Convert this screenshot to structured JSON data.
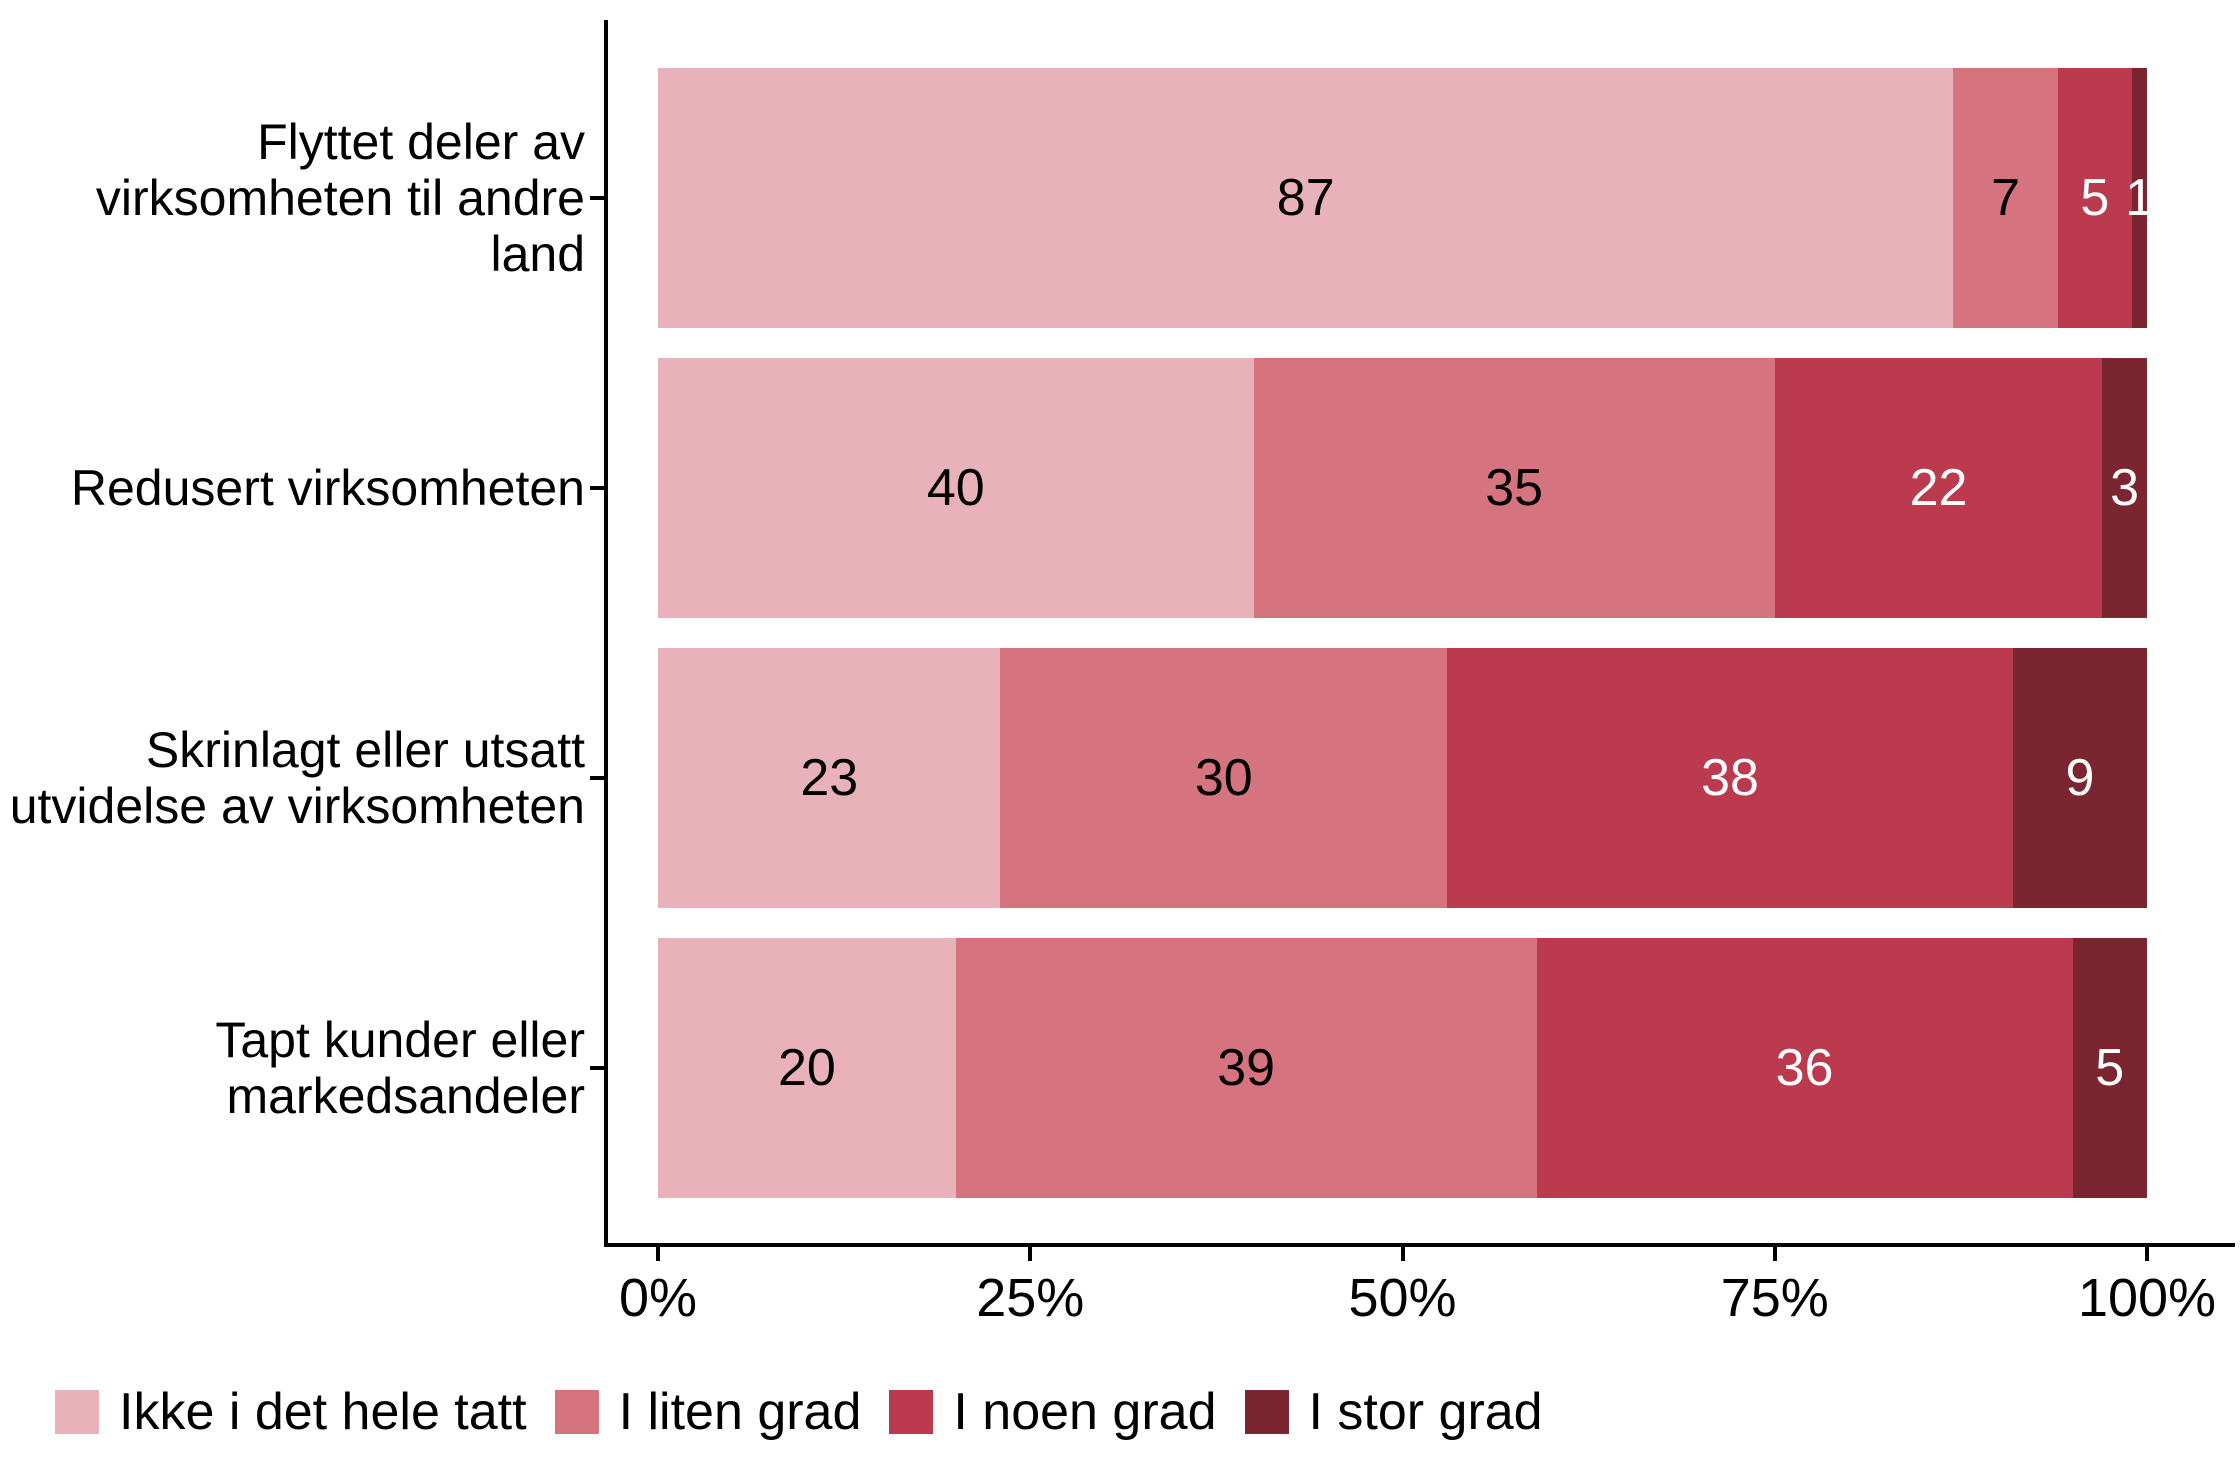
{
  "chart_data": {
    "type": "bar",
    "orientation": "horizontal",
    "stacked": true,
    "unit": "percent",
    "title": "",
    "categories": [
      {
        "label": "Flyttet deler av virksomheten til andre land",
        "lines": [
          "Flyttet deler av",
          "virksomheten til andre",
          "land"
        ]
      },
      {
        "label": "Redusert virksomheten",
        "lines": [
          "Redusert virksomheten"
        ]
      },
      {
        "label": "Skrinlagt eller utsatt utvidelse av virksomheten",
        "lines": [
          "Skrinlagt eller utsatt",
          "utvidelse av virksomheten"
        ]
      },
      {
        "label": "Tapt kunder eller markedsandeler",
        "lines": [
          "Tapt kunder eller",
          "markedsandeler"
        ]
      }
    ],
    "series": [
      {
        "name": "Ikke i det hele tatt",
        "color": "#E9B1B9",
        "label_color": "#000000",
        "values": [
          87,
          40,
          23,
          20
        ]
      },
      {
        "name": "I liten grad",
        "color": "#D5737F",
        "label_color": "#000000",
        "values": [
          7,
          35,
          30,
          39
        ]
      },
      {
        "name": "I noen grad",
        "color": "#BC3A4E",
        "label_color": "#FFFFFF",
        "values": [
          5,
          22,
          38,
          36
        ]
      },
      {
        "name": "I stor grad",
        "color": "#7B2530",
        "label_color": "#FFFFFF",
        "values": [
          1,
          3,
          9,
          5
        ]
      }
    ],
    "x_axis": {
      "range": [
        0,
        100
      ],
      "ticks": [
        {
          "value": 0,
          "label": "0%"
        },
        {
          "value": 25,
          "label": "25%"
        },
        {
          "value": 50,
          "label": "50%"
        },
        {
          "value": 75,
          "label": "75%"
        },
        {
          "value": 100,
          "label": "100%"
        }
      ]
    },
    "legend": {
      "position": "bottom"
    },
    "axis_color": "#000000",
    "grid": false
  }
}
